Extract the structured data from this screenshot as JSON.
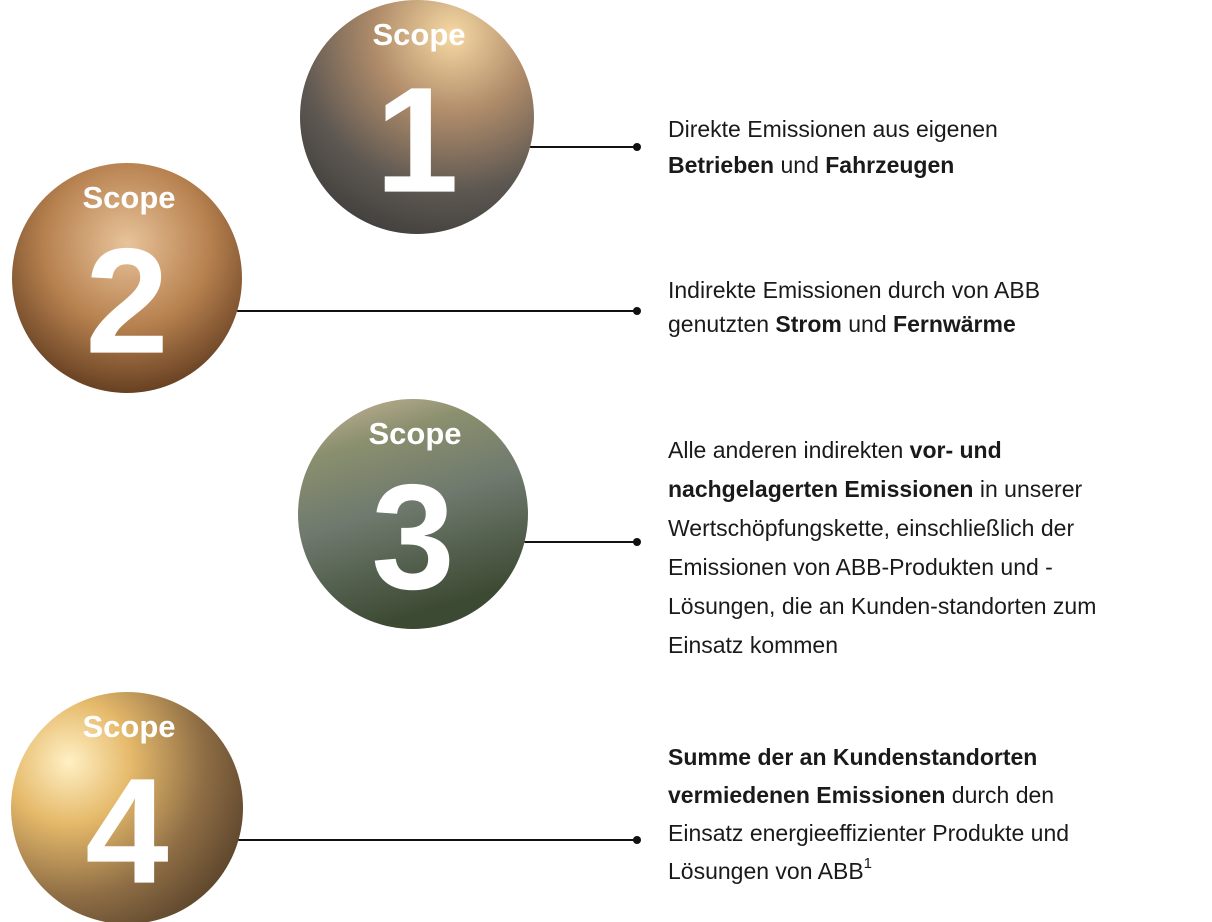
{
  "scopes": [
    {
      "label": "Scope",
      "number": "1",
      "lines": [
        [
          {
            "text": "Direkte Emissionen aus eigenen"
          }
        ],
        [
          {
            "text": "Betrieben",
            "bold": true
          },
          {
            "text": " und "
          },
          {
            "text": "Fahrzeugen",
            "bold": true
          }
        ]
      ]
    },
    {
      "label": "Scope",
      "number": "2",
      "lines": [
        [
          {
            "text": "Indirekte Emissionen durch von ABB"
          }
        ],
        [
          {
            "text": "genutzten "
          },
          {
            "text": "Strom",
            "bold": true
          },
          {
            "text": " und "
          },
          {
            "text": "Fernwärme",
            "bold": true
          }
        ]
      ]
    },
    {
      "label": "Scope",
      "number": "3",
      "lines": [
        [
          {
            "text": "Alle anderen indirekten "
          },
          {
            "text": "vor- und",
            "bold": true
          }
        ],
        [
          {
            "text": "nachgelagerten Emissionen",
            "bold": true
          },
          {
            "text": " in unserer"
          }
        ],
        [
          {
            "text": "Wertschöpfungskette, einschließlich der"
          }
        ],
        [
          {
            "text": "Emissionen von ABB-Produkten und -"
          }
        ],
        [
          {
            "text": "Lösungen, die an Kunden-standorten zum"
          }
        ],
        [
          {
            "text": "Einsatz kommen"
          }
        ]
      ]
    },
    {
      "label": "Scope",
      "number": "4",
      "lines": [
        [
          {
            "text": "Summe der an Kundenstandorten",
            "bold": true
          }
        ],
        [
          {
            "text": "vermiedenen Emissionen",
            "bold": true
          },
          {
            "text": " durch den"
          }
        ],
        [
          {
            "text": "Einsatz energieeffizienter Produkte und"
          }
        ],
        [
          {
            "text": "Lösungen von ABB"
          },
          {
            "text": "1",
            "sup": true
          }
        ]
      ]
    }
  ]
}
